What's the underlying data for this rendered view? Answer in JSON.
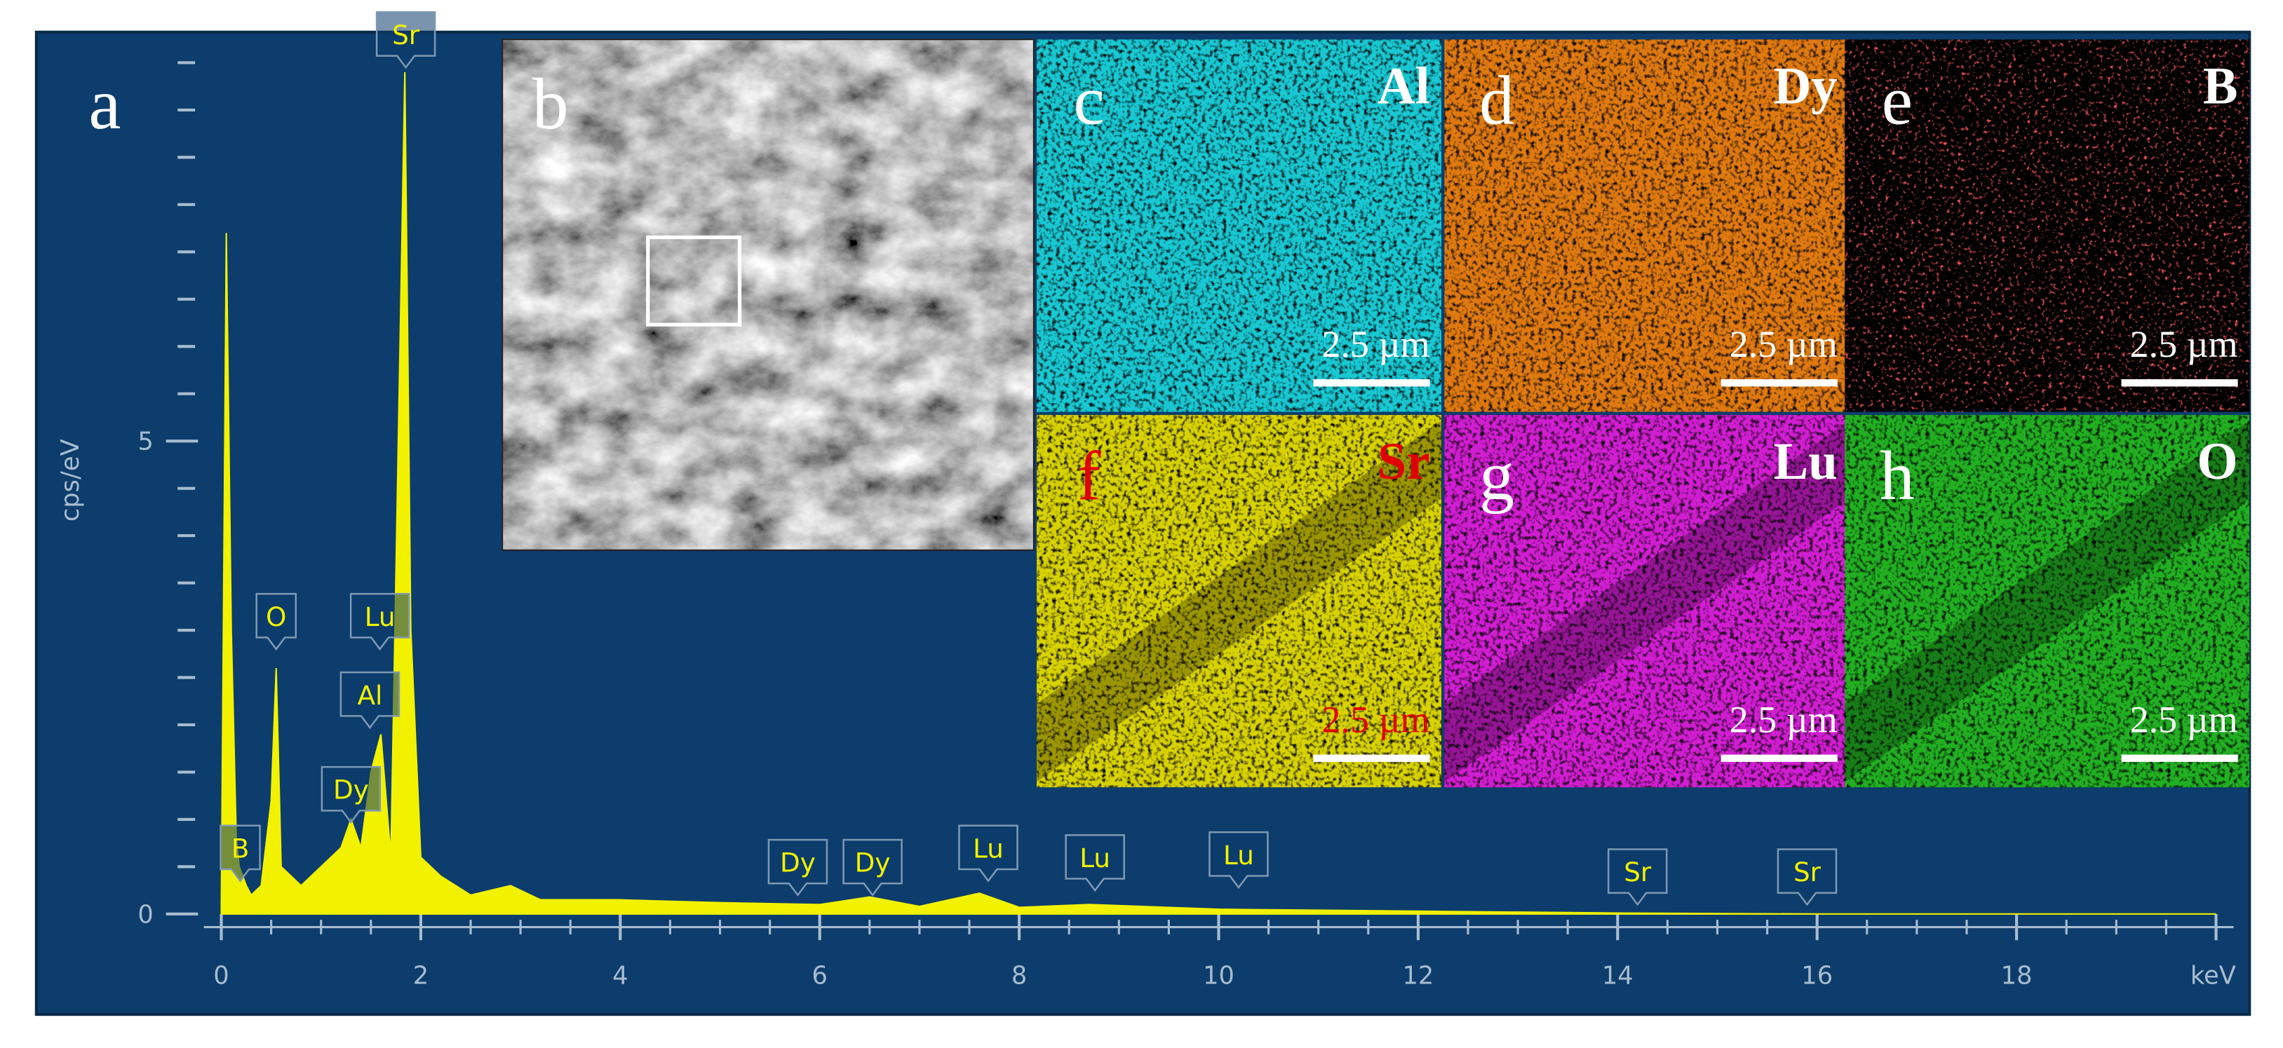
{
  "chart_data": {
    "type": "area",
    "panel_label": "a",
    "x_label": "keV",
    "y_label": "cps/eV",
    "color": "#f2f200",
    "x": [
      0,
      0.05,
      0.1,
      0.15,
      0.18,
      0.25,
      0.3,
      0.4,
      0.5,
      0.55,
      0.6,
      0.8,
      1.0,
      1.2,
      1.3,
      1.4,
      1.5,
      1.6,
      1.7,
      1.8,
      1.84,
      1.9,
      2.0,
      2.2,
      2.5,
      2.9,
      3.2,
      4,
      5,
      6,
      6.5,
      7,
      7.6,
      8,
      8.7,
      10,
      12,
      14,
      16,
      20
    ],
    "values": [
      0.1,
      7.2,
      3,
      0.8,
      0.5,
      0.3,
      0.2,
      0.3,
      1.2,
      2.6,
      0.5,
      0.3,
      0.5,
      0.7,
      1.0,
      0.7,
      1.5,
      1.9,
      0.6,
      6.5,
      8.9,
      3,
      0.6,
      0.4,
      0.2,
      0.3,
      0.15,
      0.15,
      0.12,
      0.1,
      0.18,
      0.08,
      0.22,
      0.07,
      0.1,
      0.05,
      0.03,
      0.01,
      0,
      0
    ],
    "xlim": [
      0,
      20
    ],
    "ylim": [
      0,
      9
    ],
    "xticks": [
      0,
      2,
      4,
      6,
      8,
      10,
      12,
      14,
      16,
      18
    ],
    "yticks": [
      0,
      5
    ],
    "grid": false,
    "annotations": [
      {
        "text": "B",
        "x": 0.19,
        "y": 0.35
      },
      {
        "text": "O",
        "x": 0.55,
        "y": 2.8
      },
      {
        "text": "Dy",
        "x": 1.3,
        "y": 0.97
      },
      {
        "text": "Al",
        "x": 1.49,
        "y": 1.97
      },
      {
        "text": "Lu",
        "x": 1.59,
        "y": 2.8
      },
      {
        "text": "Sr",
        "x": 1.85,
        "y": 8.95
      },
      {
        "text": "Dy",
        "x": 5.78,
        "y": 0.2
      },
      {
        "text": "Dy",
        "x": 6.53,
        "y": 0.2
      },
      {
        "text": "Lu",
        "x": 7.69,
        "y": 0.35
      },
      {
        "text": "Lu",
        "x": 8.76,
        "y": 0.25
      },
      {
        "text": "Lu",
        "x": 10.2,
        "y": 0.28
      },
      {
        "text": "Sr",
        "x": 14.2,
        "y": 0.1
      },
      {
        "text": "Sr",
        "x": 15.9,
        "y": 0.1
      }
    ]
  },
  "panels": [
    {
      "label": "b"
    },
    {
      "label": "c",
      "element": "Al",
      "scale": "2.5 µm",
      "color": "#19c8d2",
      "text_color": "#ffffff"
    },
    {
      "label": "d",
      "element": "Dy",
      "scale": "2.5 µm",
      "color": "#e07a10",
      "text_color": "#ffffff"
    },
    {
      "label": "e",
      "element": "B",
      "scale": "2.5 µm",
      "color": "#3a0000",
      "text_color": "#ffffff"
    },
    {
      "label": "f",
      "element": "Sr",
      "scale": "2.5 µm",
      "color": "#d8d200",
      "text_color": "#e00000"
    },
    {
      "label": "g",
      "element": "Lu",
      "scale": "2.5 µm",
      "color": "#d21ed2",
      "text_color": "#ffffff"
    },
    {
      "label": "h",
      "element": "O",
      "scale": "2.5 µm",
      "color": "#22b022",
      "text_color": "#ffffff"
    }
  ]
}
